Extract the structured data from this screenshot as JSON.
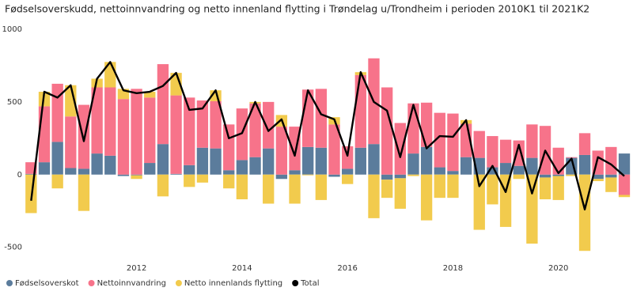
{
  "chart_data": {
    "type": "bar",
    "title": "Fødselsoverskudd, nettoinnvandring og netto innenland flytting i Trøndelag u/Trondheim i perioden 2010K1 til 2021K2",
    "x": [
      2010,
      2010.25,
      2010.5,
      2010.75,
      2011,
      2011.25,
      2011.5,
      2011.75,
      2012,
      2012.25,
      2012.5,
      2012.75,
      2013,
      2013.25,
      2013.5,
      2013.75,
      2014,
      2014.25,
      2014.5,
      2014.75,
      2015,
      2015.25,
      2015.5,
      2015.75,
      2016,
      2016.25,
      2016.5,
      2016.75,
      2017,
      2017.25,
      2017.5,
      2017.75,
      2018,
      2018.25,
      2018.5,
      2018.75,
      2019,
      2019.25,
      2019.5,
      2019.75,
      2020,
      2020.25,
      2020.5,
      2020.75,
      2021,
      2021.25
    ],
    "series": [
      {
        "name": "Fødselsoverskot",
        "color": "#5b7c9c",
        "values": [
          5,
          85,
          225,
          45,
          40,
          145,
          130,
          -10,
          -5,
          80,
          210,
          5,
          65,
          185,
          180,
          30,
          100,
          120,
          180,
          -30,
          30,
          190,
          185,
          -15,
          40,
          185,
          210,
          -35,
          -25,
          145,
          190,
          50,
          25,
          120,
          115,
          50,
          80,
          60,
          115,
          -20,
          -10,
          115,
          135,
          -30,
          -20,
          145
        ]
      },
      {
        "name": "Nettoinnvandring",
        "color": "#f7738a",
        "values": [
          80,
          385,
          400,
          355,
          440,
          455,
          470,
          520,
          590,
          450,
          550,
          540,
          465,
          325,
          325,
          315,
          355,
          370,
          320,
          330,
          300,
          395,
          405,
          345,
          155,
          500,
          590,
          600,
          355,
          345,
          305,
          375,
          395,
          230,
          185,
          215,
          160,
          175,
          230,
          335,
          185,
          5,
          150,
          165,
          190,
          -140
        ]
      },
      {
        "name": "Netto innenlands flytting",
        "color": "#f2cb4d",
        "values": [
          -265,
          100,
          -95,
          215,
          -250,
          60,
          175,
          70,
          -25,
          40,
          -150,
          155,
          -85,
          -55,
          75,
          -95,
          -170,
          10,
          -200,
          80,
          -200,
          -5,
          -175,
          50,
          -65,
          20,
          -300,
          -125,
          -210,
          -10,
          -315,
          -160,
          -160,
          25,
          -380,
          -205,
          -360,
          -30,
          -475,
          -150,
          -165,
          -10,
          -525,
          -15,
          -100,
          -15
        ]
      },
      {
        "name": "Total",
        "type": "line",
        "color": "#000000",
        "values": [
          -180,
          570,
          530,
          615,
          230,
          660,
          775,
          580,
          560,
          570,
          610,
          700,
          445,
          455,
          580,
          250,
          285,
          500,
          300,
          380,
          130,
          580,
          415,
          380,
          130,
          705,
          500,
          440,
          120,
          480,
          180,
          265,
          260,
          375,
          -80,
          60,
          -120,
          205,
          -130,
          165,
          10,
          110,
          -240,
          120,
          70,
          -10
        ]
      }
    ],
    "xlim": [
      2009.86,
      2021.37
    ],
    "xticks": [
      2012,
      2014,
      2016,
      2018,
      2020
    ],
    "ylim": [
      -600,
      1000
    ],
    "yticks": [
      -500,
      0,
      500,
      1000
    ],
    "stacked": true,
    "legend": "bottom-left"
  }
}
